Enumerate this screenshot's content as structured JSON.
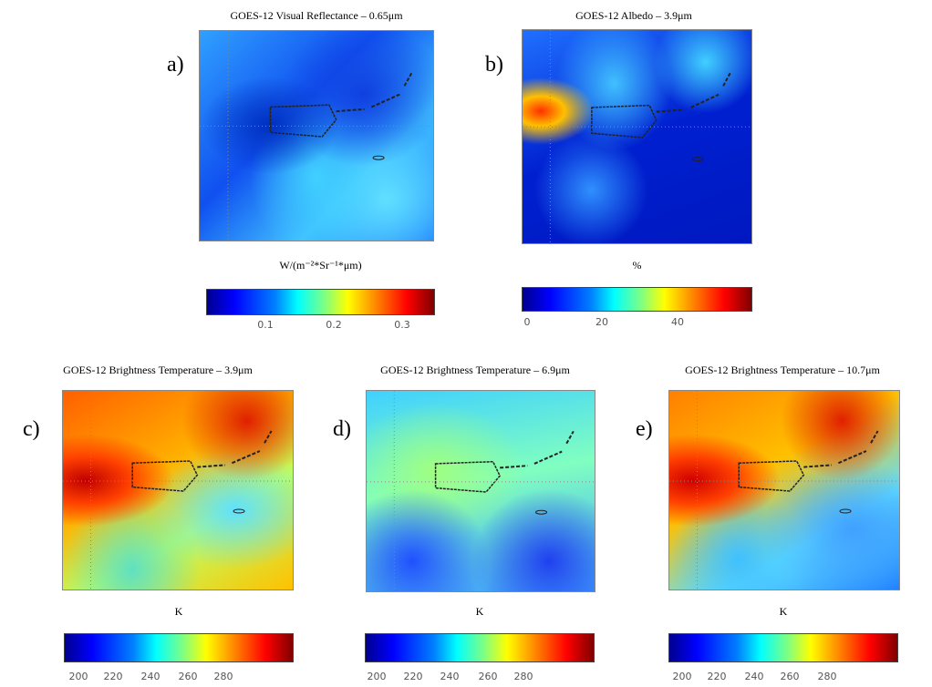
{
  "panels": [
    {
      "label": "a)",
      "title": "GOES-12 Visual Reflectance – 0.65μm",
      "unit": "W/(m⁻²*Sr⁻¹*μm)",
      "colorbar_ticks": [
        0.1,
        0.2,
        0.3
      ]
    },
    {
      "label": "b)",
      "title": "GOES-12 Albedo – 3.9μm",
      "unit": "%",
      "colorbar_ticks": [
        0,
        20,
        40
      ]
    },
    {
      "label": "c)",
      "title": "GOES-12 Brightness Temperature – 3.9μm",
      "unit": "K",
      "colorbar_ticks": [
        200,
        220,
        240,
        260,
        280
      ]
    },
    {
      "label": "d)",
      "title": "GOES-12 Brightness Temperature – 6.9μm",
      "unit": "K",
      "colorbar_ticks": [
        200,
        220,
        240,
        260,
        280
      ]
    },
    {
      "label": "e)",
      "title": "GOES-12 Brightness Temperature – 10.7μm",
      "unit": "K",
      "colorbar_ticks": [
        200,
        220,
        240,
        260,
        280
      ]
    }
  ]
}
